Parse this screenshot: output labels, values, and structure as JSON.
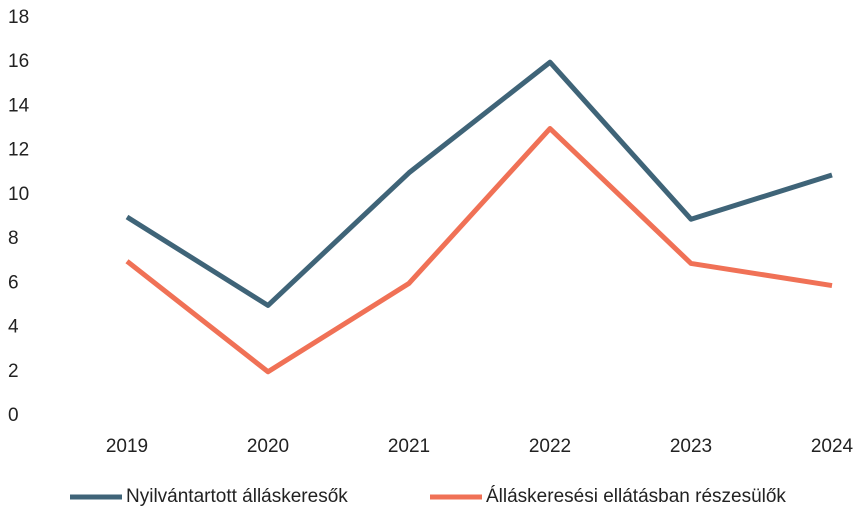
{
  "chart_data": {
    "type": "line",
    "categories": [
      "2019",
      "2020",
      "2021",
      "2022",
      "2023",
      "2024"
    ],
    "series": [
      {
        "name": "Nyilvántartott álláskeresők",
        "color": "#3f6478",
        "values": [
          9,
          5,
          11,
          16,
          8.9,
          10.9
        ]
      },
      {
        "name": "Álláskeresési ellátásban részesülők",
        "color": "#f07156",
        "values": [
          7,
          2,
          6,
          13,
          6.9,
          5.9
        ]
      }
    ],
    "ylim": [
      0,
      18
    ],
    "yticks": [
      0,
      2,
      4,
      6,
      8,
      10,
      12,
      14,
      16,
      18
    ],
    "grid": false,
    "legend": "bottom"
  }
}
